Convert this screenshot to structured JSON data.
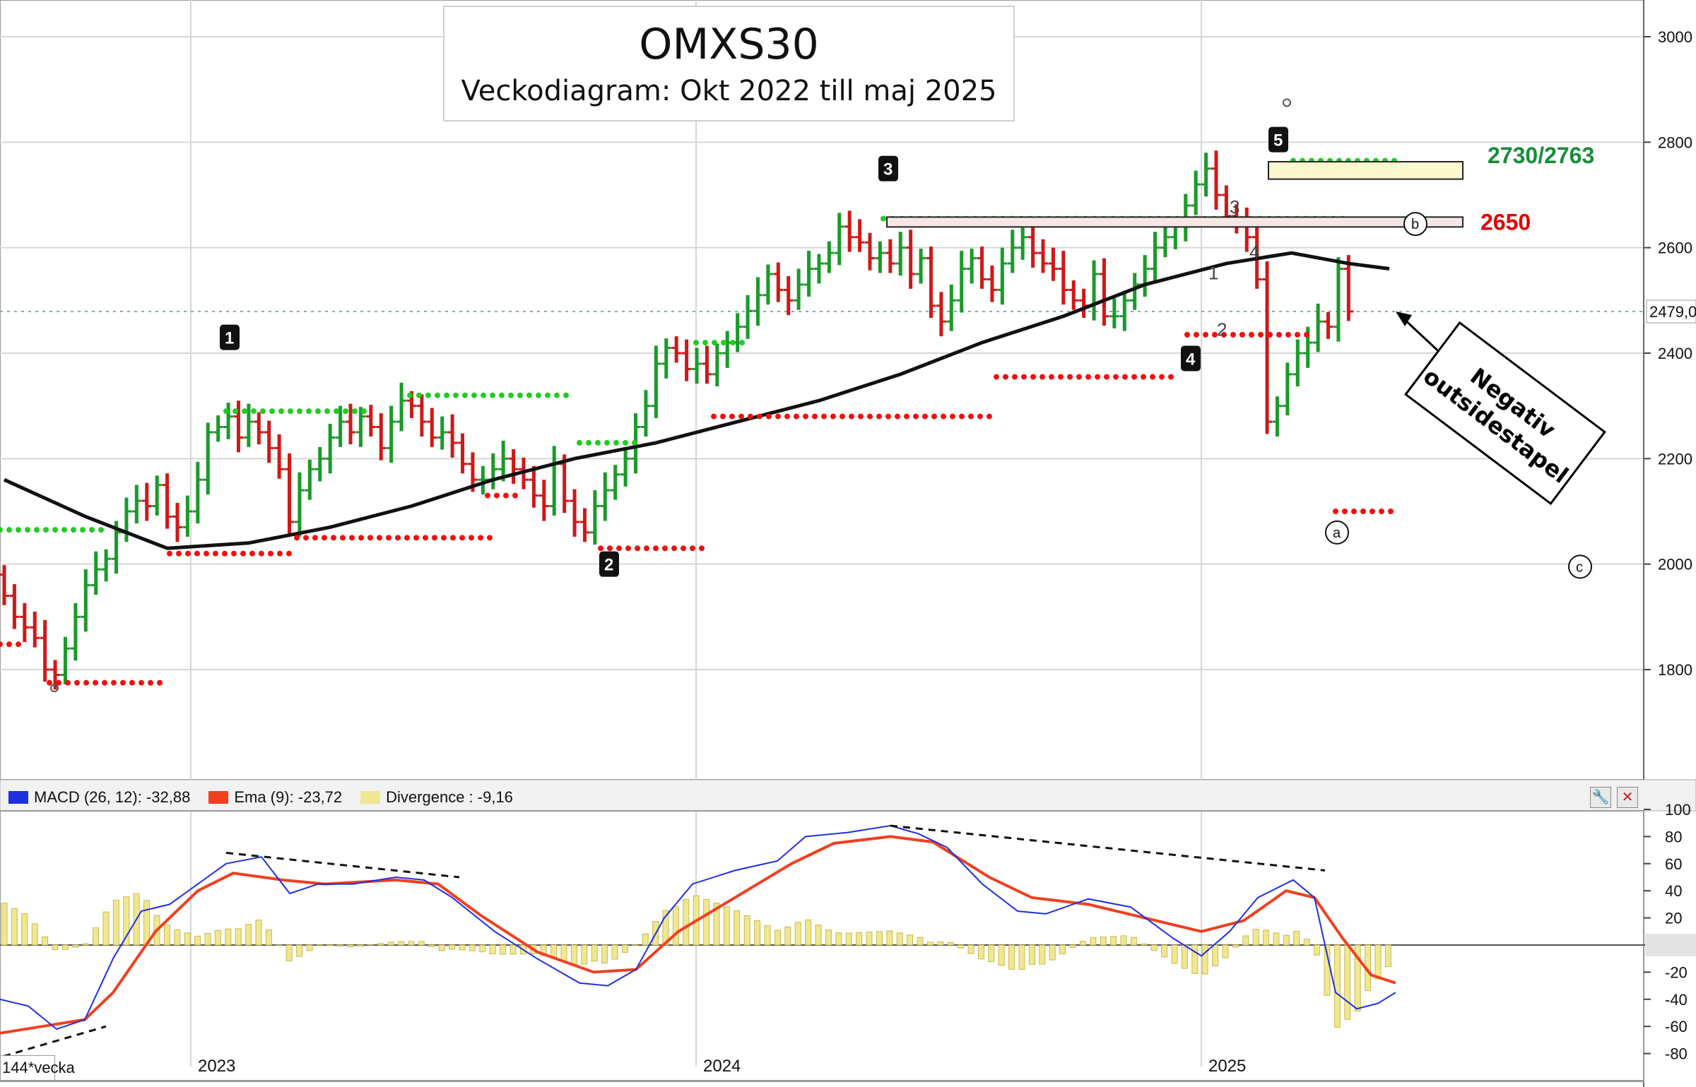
{
  "title": "OMXS30",
  "subtitle": "Veckodiagram: Okt 2022 till maj 2025",
  "annotation_box": [
    "Negativ",
    "outsidestapel"
  ],
  "levels": {
    "resistance_label": "2730/2763",
    "resistance_color": "#1a8c3a",
    "b_level_label": "2650",
    "b_level_color": "#e00000"
  },
  "current_price_label": "2479,0",
  "period_label": "144*vecka",
  "indicator": {
    "macd_label": "MACD (26, 12): -32,88",
    "ema_label": "Ema (9): -23,72",
    "div_label": "Divergence : -9,16",
    "macd_color": "#1f2fe0",
    "ema_color": "#f04020",
    "div_color": "#f0e890",
    "tool_icon": "wrench-icon",
    "close_icon": "close-icon"
  },
  "wave_labels": {
    "w1": "1",
    "w2": "2",
    "w3": "3",
    "w4": "4",
    "w5": "5",
    "sub1": "1",
    "sub2": "2",
    "sub3": "3",
    "sub4": "4",
    "a": "a",
    "b": "b",
    "c": "c"
  },
  "chart_data": [
    {
      "type": "bar",
      "subtype": "ohlc-weekly",
      "title": "OMXS30",
      "ylim": [
        1580,
        3050
      ],
      "y_ticks": [
        "3000",
        "2800",
        "2600",
        "2400",
        "2200",
        "2000",
        "1800"
      ],
      "x_ticks": [
        "2023",
        "2024",
        "2025"
      ],
      "grid": true,
      "up_color": "#1a9a2a",
      "down_color": "#d01818",
      "closes": [
        1940,
        1900,
        1880,
        1860,
        1800,
        1790,
        1840,
        1900,
        1960,
        1990,
        2010,
        2060,
        2100,
        2120,
        2110,
        2150,
        2090,
        2070,
        2100,
        2160,
        2250,
        2260,
        2280,
        2240,
        2270,
        2250,
        2220,
        2180,
        2080,
        2140,
        2180,
        2200,
        2240,
        2270,
        2250,
        2280,
        2260,
        2220,
        2270,
        2310,
        2300,
        2270,
        2240,
        2250,
        2230,
        2190,
        2160,
        2160,
        2180,
        2200,
        2180,
        2160,
        2130,
        2110,
        2190,
        2120,
        2080,
        2060,
        2110,
        2140,
        2170,
        2200,
        2260,
        2300,
        2380,
        2410,
        2400,
        2370,
        2380,
        2360,
        2400,
        2420,
        2450,
        2480,
        2510,
        2550,
        2520,
        2500,
        2530,
        2560,
        2570,
        2590,
        2640,
        2620,
        2610,
        2580,
        2590,
        2570,
        2600,
        2550,
        2580,
        2490,
        2460,
        2500,
        2560,
        2580,
        2540,
        2520,
        2570,
        2600,
        2620,
        2590,
        2570,
        2560,
        2520,
        2500,
        2490,
        2550,
        2470,
        2470,
        2500,
        2530,
        2560,
        2600,
        2620,
        2640,
        2680,
        2720,
        2750,
        2700,
        2660,
        2650,
        2620,
        2540,
        2270,
        2300,
        2360,
        2400,
        2420,
        2460,
        2450,
        2560,
        2479
      ],
      "ema_line_label": "EMA",
      "ema_points": [
        [
          0,
          2160
        ],
        [
          10,
          2090
        ],
        [
          20,
          2030
        ],
        [
          30,
          2040
        ],
        [
          40,
          2070
        ],
        [
          50,
          2110
        ],
        [
          60,
          2160
        ],
        [
          70,
          2200
        ],
        [
          80,
          2230
        ],
        [
          90,
          2270
        ],
        [
          100,
          2310
        ],
        [
          110,
          2360
        ],
        [
          120,
          2420
        ],
        [
          130,
          2470
        ],
        [
          140,
          2530
        ],
        [
          150,
          2570
        ],
        [
          158,
          2590
        ],
        [
          165,
          2570
        ],
        [
          170,
          2560
        ]
      ],
      "resistance_zone": [
        2730,
        2763
      ],
      "b_level": 2650
    },
    {
      "type": "line",
      "title": "MACD",
      "ylim": [
        -85,
        105
      ],
      "y_ticks": [
        "100",
        "80",
        "60",
        "40",
        "20",
        "0",
        "-20",
        "-40",
        "-60",
        "-80"
      ],
      "series": [
        {
          "name": "MACD (26, 12)",
          "last": -32.88
        },
        {
          "name": "Ema (9)",
          "last": -23.72
        },
        {
          "name": "Divergence",
          "last": -9.16
        }
      ]
    }
  ]
}
